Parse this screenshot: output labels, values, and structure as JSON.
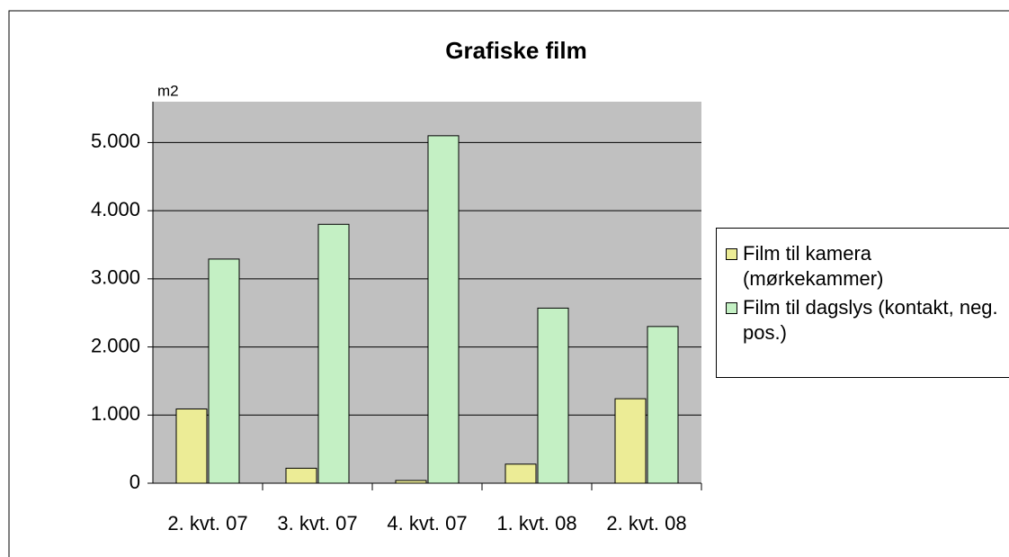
{
  "chart_data": {
    "type": "bar",
    "title": "Grafiske film",
    "y_label": "m2",
    "categories": [
      "2. kvt. 07",
      "3. kvt. 07",
      "4. kvt. 07",
      "1. kvt. 08",
      "2. kvt. 08"
    ],
    "series": [
      {
        "name": "Film til kamera (mørkekammer)",
        "color": "#ecec96",
        "values": [
          1090,
          220,
          40,
          280,
          1240
        ]
      },
      {
        "name": "Film til dagslys (kontakt, neg. pos.)",
        "color": "#c4f0c4",
        "values": [
          3290,
          3800,
          5100,
          2570,
          2300
        ]
      }
    ],
    "ylim": [
      0,
      5600
    ],
    "yticks": [
      0,
      {
        "value": 1000,
        "label": "1.000"
      },
      {
        "value": 2000,
        "label": "2.000"
      },
      {
        "value": 3000,
        "label": "3.000"
      },
      {
        "value": 4000,
        "label": "4.000"
      },
      {
        "value": 5000,
        "label": "5.000"
      }
    ],
    "grid": true,
    "legend": "right"
  }
}
